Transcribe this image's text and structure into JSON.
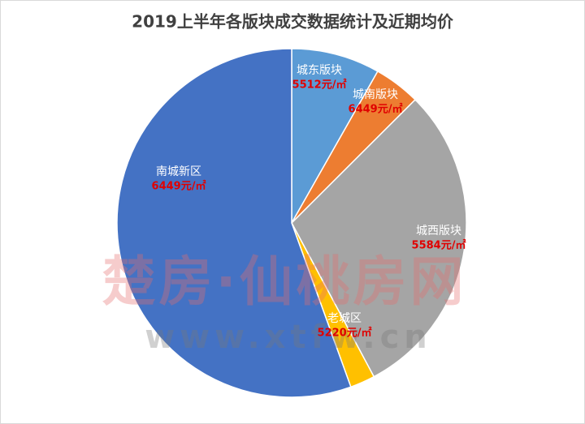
{
  "chart_data": {
    "type": "pie",
    "title": "2019上半年各版块成交数据统计及近期均价",
    "categories": [
      "城东版块",
      "城南版块",
      "城西版块",
      "老城区",
      "南城新区"
    ],
    "values": [
      8.2,
      4.3,
      29.7,
      2.3,
      55.5
    ],
    "colors": [
      "#5b9bd5",
      "#ed7d31",
      "#a5a5a5",
      "#ffc000",
      "#4472c4"
    ],
    "price_labels": [
      "5512元/㎡",
      "6449元/㎡",
      "5584元/㎡",
      "5220元/㎡",
      "6449元/㎡"
    ],
    "watermark": [
      "楚房·仙桃房网",
      "www.xtfw.cn"
    ]
  }
}
